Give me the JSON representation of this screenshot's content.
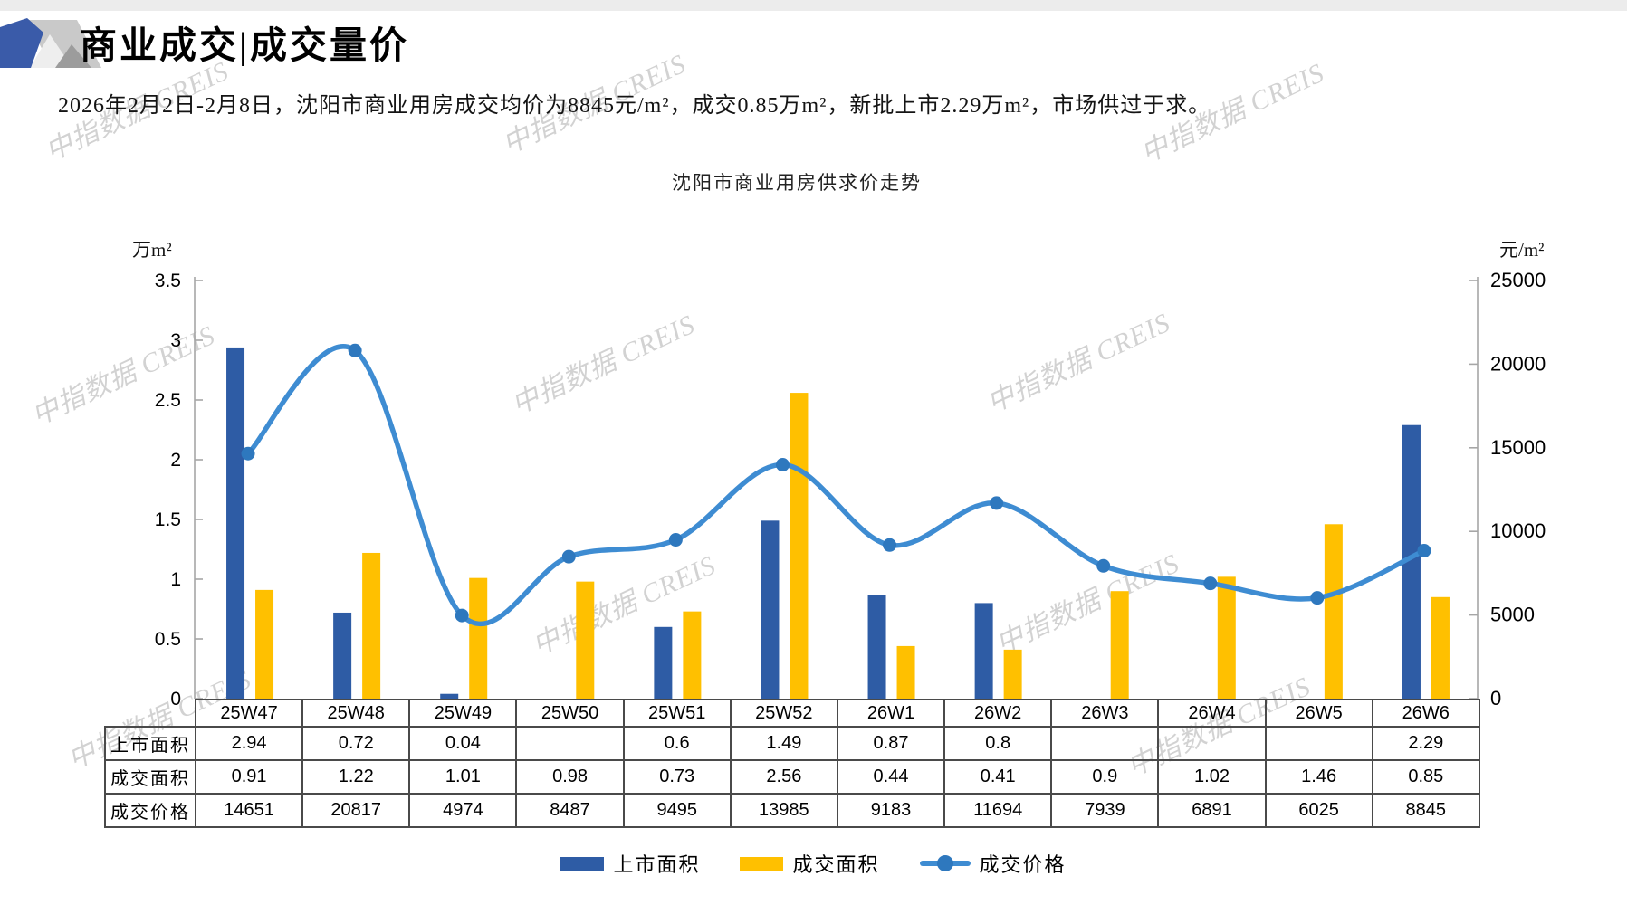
{
  "header": {
    "title": "商业成交|成交量价"
  },
  "subtitle": "2026年2月2日-2月8日，沈阳市商业用房成交均价为8845元/m²，成交0.85万m²，新批上市2.29万m²，市场供过于求。",
  "watermark_text": "中指数据 CREIS",
  "chart_data": {
    "type": "bar+line",
    "title": "沈阳市商业用房供求价走势",
    "categories": [
      "25W47",
      "25W48",
      "25W49",
      "25W50",
      "25W51",
      "25W52",
      "26W1",
      "26W2",
      "26W3",
      "26W4",
      "26W5",
      "26W6"
    ],
    "series": [
      {
        "name": "上市面积",
        "type": "bar",
        "axis": "left",
        "color": "#2E5CA5",
        "values": [
          2.94,
          0.72,
          0.04,
          null,
          0.6,
          1.49,
          0.87,
          0.8,
          null,
          null,
          null,
          2.29
        ]
      },
      {
        "name": "成交面积",
        "type": "bar",
        "axis": "left",
        "color": "#FFC000",
        "values": [
          0.91,
          1.22,
          1.01,
          0.98,
          0.73,
          2.56,
          0.44,
          0.41,
          0.9,
          1.02,
          1.46,
          0.85
        ]
      },
      {
        "name": "成交价格",
        "type": "line",
        "axis": "right",
        "color": "#3E8CD2",
        "marker_color": "#2E78BE",
        "values": [
          14651,
          20817,
          4974,
          8487,
          9495,
          13985,
          9183,
          11694,
          7939,
          6891,
          6025,
          8845
        ]
      }
    ],
    "left_axis": {
      "unit": "万m²",
      "min": 0,
      "max": 3.5,
      "step": 0.5,
      "tick_labels": [
        "3.5",
        "3",
        "2.5",
        "2",
        "1.5",
        "1",
        "0.5",
        "0"
      ]
    },
    "right_axis": {
      "unit": "元/m²",
      "min": 0,
      "max": 25000,
      "step": 5000,
      "tick_labels": [
        "25000",
        "20000",
        "15000",
        "10000",
        "5000",
        "0"
      ]
    },
    "legend_position": "bottom",
    "grid": false
  },
  "table": {
    "row_labels": [
      "上市面积",
      "成交面积",
      "成交价格"
    ],
    "rows": [
      [
        "2.94",
        "0.72",
        "0.04",
        "",
        "0.6",
        "1.49",
        "0.87",
        "0.8",
        "",
        "",
        "",
        "2.29"
      ],
      [
        "0.91",
        "1.22",
        "1.01",
        "0.98",
        "0.73",
        "2.56",
        "0.44",
        "0.41",
        "0.9",
        "1.02",
        "1.46",
        "0.85"
      ],
      [
        "14651",
        "20817",
        "4974",
        "8487",
        "9495",
        "13985",
        "9183",
        "11694",
        "7939",
        "6891",
        "6025",
        "8845"
      ]
    ]
  },
  "colors": {
    "bar_listed": "#2E5CA5",
    "bar_sold": "#FFC000",
    "price_line": "#3E8CD2",
    "price_marker": "#2E78BE",
    "axis": "#A6A6A6",
    "table_border": "#4a4a4a"
  }
}
